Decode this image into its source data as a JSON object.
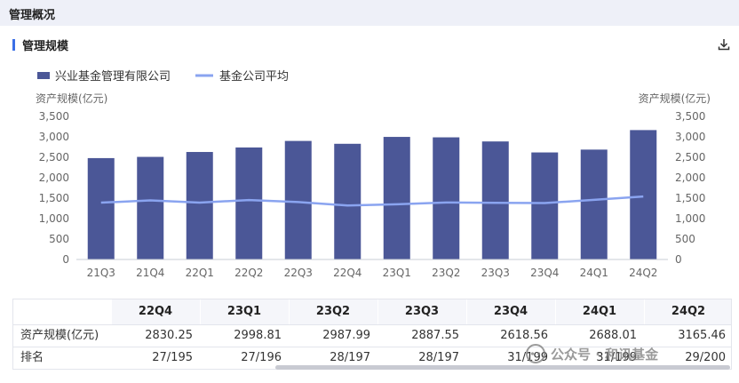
{
  "header": {
    "title": "管理概况"
  },
  "section": {
    "title": "管理规模"
  },
  "icons": {
    "download": "download-icon",
    "watermark": "wechat-icon"
  },
  "colors": {
    "bar": "#4b5797",
    "line": "#8aa4f0",
    "accent": "#3b6fe6"
  },
  "chart_data": {
    "type": "bar",
    "categories": [
      "21Q3",
      "21Q4",
      "22Q1",
      "22Q2",
      "22Q3",
      "22Q4",
      "23Q1",
      "23Q2",
      "23Q3",
      "23Q4",
      "24Q1",
      "24Q2"
    ],
    "series": [
      {
        "name": "兴业基金管理有限公司",
        "type": "bar",
        "values": [
          2480,
          2510,
          2630,
          2740,
          2900,
          2830.25,
          2998.81,
          2987.99,
          2887.55,
          2618.56,
          2688.01,
          3165.46
        ]
      },
      {
        "name": "基金公司平均",
        "type": "line",
        "values": [
          1390,
          1445,
          1390,
          1455,
          1405,
          1320,
          1350,
          1395,
          1385,
          1380,
          1460,
          1540
        ]
      }
    ],
    "ylabel_left": "资产规模(亿元)",
    "ylabel_right": "资产规模(亿元)",
    "ylim": [
      0,
      3500
    ],
    "yticks": [
      "0",
      "500",
      "1,000",
      "1,500",
      "2,000",
      "2,500",
      "3,000",
      "3,500"
    ],
    "grid": false,
    "legend": "top-left"
  },
  "table": {
    "columns": [
      "22Q4",
      "23Q1",
      "23Q2",
      "23Q3",
      "23Q4",
      "24Q1",
      "24Q2"
    ],
    "rows": [
      {
        "label": "资产规模(亿元)",
        "values": [
          "2830.25",
          "2998.81",
          "2987.99",
          "2887.55",
          "2618.56",
          "2688.01",
          "3165.46"
        ]
      },
      {
        "label": "排名",
        "values": [
          "27/195",
          "27/196",
          "28/197",
          "28/197",
          "31/199",
          "31/199",
          "29/200"
        ]
      }
    ]
  },
  "watermark": {
    "text": "公众号 · 和讯基金"
  }
}
